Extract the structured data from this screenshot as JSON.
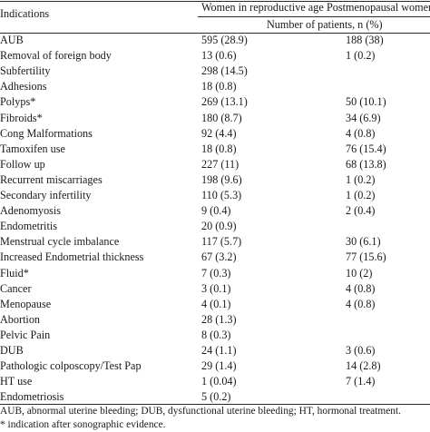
{
  "header": {
    "indications": "Indications",
    "col_reproductive": "Women in reproductive age",
    "col_postmenopausal": "Postmenopausal women",
    "subheader": "Number of patients, n (%)"
  },
  "rows": [
    {
      "indication": "AUB",
      "reproductive": "595 (28.9)",
      "postmenopausal": "188 (38)"
    },
    {
      "indication": "Removal of foreign body",
      "reproductive": "13 (0.6)",
      "postmenopausal": "1 (0.2)"
    },
    {
      "indication": "Subfertility",
      "reproductive": "298 (14.5)",
      "postmenopausal": ""
    },
    {
      "indication": "Adhesions",
      "reproductive": "18 (0.8)",
      "postmenopausal": ""
    },
    {
      "indication": "Polyps*",
      "reproductive": "269 (13.1)",
      "postmenopausal": "50 (10.1)"
    },
    {
      "indication": "Fibroids*",
      "reproductive": "180 (8.7)",
      "postmenopausal": "34 (6.9)"
    },
    {
      "indication": "Cong Malformations",
      "reproductive": "92 (4.4)",
      "postmenopausal": "4 (0.8)"
    },
    {
      "indication": "Tamoxifen use",
      "reproductive": "18 (0.8)",
      "postmenopausal": "76 (15.4)"
    },
    {
      "indication": "Follow up",
      "reproductive": "227 (11)",
      "postmenopausal": "68 (13.8)"
    },
    {
      "indication": "Recurrent miscarriages",
      "reproductive": "198 (9.6)",
      "postmenopausal": "1 (0.2)"
    },
    {
      "indication": "Secondary infertility",
      "reproductive": "110 (5.3)",
      "postmenopausal": "1 (0.2)"
    },
    {
      "indication": "Adenomyosis",
      "reproductive": "9 (0.4)",
      "postmenopausal": "2 (0.4)"
    },
    {
      "indication": "Endometritis",
      "reproductive": "20 (0.9)",
      "postmenopausal": ""
    },
    {
      "indication": "Menstrual cycle imbalance",
      "reproductive": "117 (5.7)",
      "postmenopausal": "30 (6.1)"
    },
    {
      "indication": "Increased Endometrial thickness",
      "reproductive": "67 (3.2)",
      "postmenopausal": "77 (15.6)"
    },
    {
      "indication": "Fluid*",
      "reproductive": "7 (0.3)",
      "postmenopausal": "10 (2)"
    },
    {
      "indication": "Cancer",
      "reproductive": "3 (0.1)",
      "postmenopausal": "4 (0.8)"
    },
    {
      "indication": "Menopause",
      "reproductive": "4 (0.1)",
      "postmenopausal": "4 (0.8)"
    },
    {
      "indication": "Abortion",
      "reproductive": "28 (1.3)",
      "postmenopausal": ""
    },
    {
      "indication": "Pelvic Pain",
      "reproductive": "8 (0.3)",
      "postmenopausal": ""
    },
    {
      "indication": "DUB",
      "reproductive": "24 (1.1)",
      "postmenopausal": "3 (0.6)"
    },
    {
      "indication": "Pathologic colposcopy/Test Pap",
      "reproductive": "29 (1.4)",
      "postmenopausal": "14 (2.8)"
    },
    {
      "indication": "HT use",
      "reproductive": "1 (0.04)",
      "postmenopausal": "7 (1.4)"
    },
    {
      "indication": "Endometriosis",
      "reproductive": "5 (0.2)",
      "postmenopausal": ""
    }
  ],
  "footnotes": [
    "AUB, abnormal uterine bleeding; DUB, dysfunctional uterine bleeding; HT, hormonal treatment.",
    "* indication after sonographic evidence."
  ]
}
